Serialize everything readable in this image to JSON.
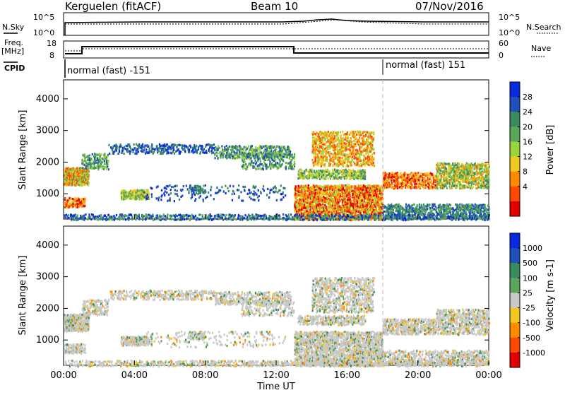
{
  "header": {
    "station": "Kerguelen (fitACF)",
    "beam": "Beam 10",
    "date": "07/Nov/2016"
  },
  "top_panels": {
    "nsky_label": "N.Sky",
    "nsearch_label": "N.Search",
    "nsky_ticks": [
      "10^5",
      "10^0"
    ],
    "freq_label": "Freq.",
    "freq_unit": "[MHz]",
    "freq_ticks": [
      "18",
      "8"
    ],
    "nave_label": "Nave",
    "nave_ticks": [
      "60",
      "0"
    ],
    "cpid_label": "CPID",
    "cpid_segments": [
      {
        "label": "normal (fast) -151",
        "start_hour": 0
      },
      {
        "label": "normal (fast) 151",
        "start_hour": 18
      }
    ]
  },
  "colors": {
    "power": [
      "#0a2ae0",
      "#1f50b8",
      "#3a8a60",
      "#5aa65a",
      "#9ad43a",
      "#f0c820",
      "#ff8c00",
      "#ff4800",
      "#e00000"
    ],
    "velocity": [
      "#0a2ae0",
      "#1f50b8",
      "#3a8a60",
      "#5aa65a",
      "#c8c8c8",
      "#f0c820",
      "#ff8c00",
      "#ff4800",
      "#e00000"
    ]
  },
  "chart_data": [
    {
      "type": "heatmap",
      "ylabel": "Slant Range [km]",
      "colorbar_label": "Power [dB]",
      "colorbar_ticks": [
        "28",
        "24",
        "20",
        "16",
        "12",
        "8",
        "4"
      ],
      "ylim": [
        200,
        4600
      ],
      "y_ticks": [
        "4000",
        "3000",
        "2000",
        "1000"
      ],
      "x_ticks": [
        "00:00",
        "04:00",
        "08:00",
        "12:00",
        "16:00",
        "20:00",
        "00:00"
      ],
      "xlim_hours": [
        0,
        24
      ]
    },
    {
      "type": "heatmap",
      "ylabel": "Slant Range [km]",
      "xlabel": "Time UT",
      "colorbar_label": "Velocity [m s-1]",
      "colorbar_ticks": [
        "1000",
        "500",
        "100",
        "25",
        "-25",
        "-100",
        "-500",
        "-1000"
      ],
      "ylim": [
        200,
        4600
      ],
      "y_ticks": [
        "4000",
        "3000",
        "2000",
        "1000"
      ],
      "x_ticks": [
        "00:00",
        "04:00",
        "08:00",
        "12:00",
        "16:00",
        "20:00",
        "00:00"
      ],
      "xlim_hours": [
        0,
        24
      ]
    }
  ]
}
